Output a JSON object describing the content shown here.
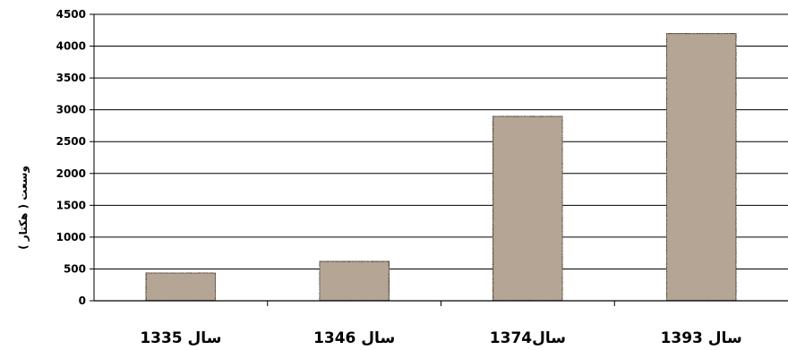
{
  "chart_data": {
    "type": "bar",
    "categories": [
      "سال 1335",
      "سال 1346",
      "سال1374",
      "سال 1393"
    ],
    "values": [
      440,
      620,
      2900,
      4200
    ],
    "ylabel": "وسعت ( هکتار )",
    "ylim": [
      0,
      4500
    ],
    "yticks": [
      0,
      500,
      1000,
      1500,
      2000,
      2500,
      3000,
      3500,
      4000,
      4500
    ],
    "grid": true,
    "bar_color": "#b5a593",
    "bar_edge_color": "#3a2a1e"
  }
}
